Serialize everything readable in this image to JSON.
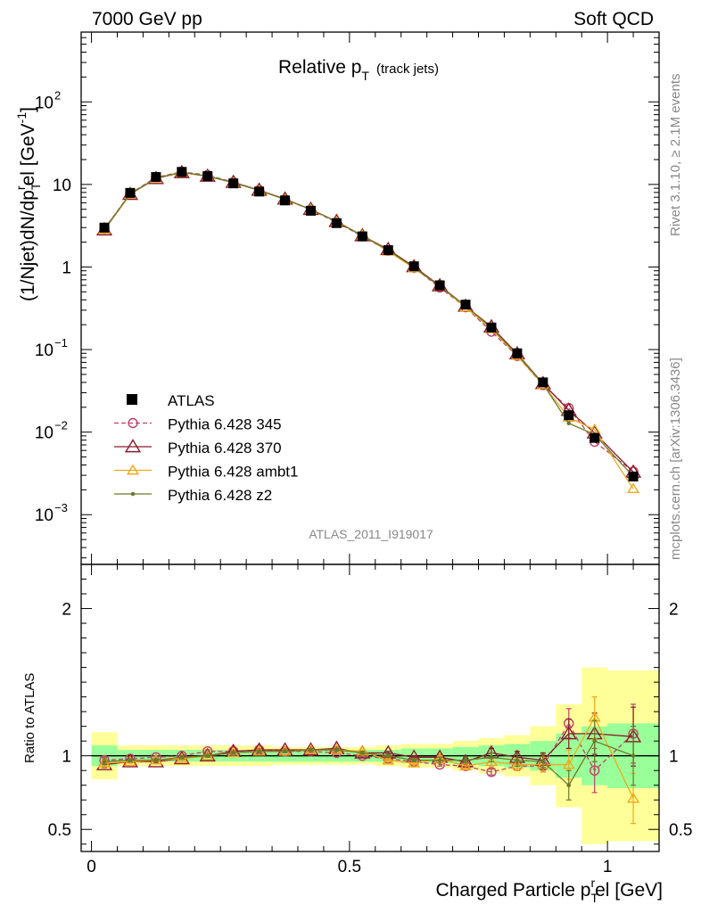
{
  "header": {
    "left": "7000 GeV pp",
    "right": "Soft QCD"
  },
  "side_labels": {
    "rivet": "Rivet 3.1.10, ≥ 2.1M events",
    "mcplots": "mcplots.cern.ch [arXiv:1306.3436]"
  },
  "chart_data": {
    "type": "line",
    "title": "Relative p_T (track jets)",
    "title_main": "Relative p",
    "title_sub": "T",
    "title_extra": "(track jets)",
    "analysis_id": "ATLAS_2011_I919017",
    "xlabel": "Charged Particle p_T^rel [GeV]",
    "ylabel": "(1/Njet)dN/dp_T^rel [GeV^-1]",
    "ratio_ylabel": "Ratio to ATLAS",
    "xlim": [
      -0.02,
      1.1
    ],
    "ylim": [
      0.00025,
      700
    ],
    "yscale": "log",
    "ratio_ylim": [
      0.35,
      2.3
    ],
    "x_ticks": [
      "0",
      "0.5",
      "1"
    ],
    "y_ticks": [
      "10^-3",
      "10^-2",
      "10^-1",
      "1",
      "10",
      "10^2"
    ],
    "ratio_ticks": [
      "0.5",
      "1",
      "2"
    ],
    "legend_placement": "lower-left",
    "x": [
      0.025,
      0.075,
      0.125,
      0.175,
      0.225,
      0.275,
      0.325,
      0.375,
      0.425,
      0.475,
      0.525,
      0.575,
      0.625,
      0.675,
      0.725,
      0.775,
      0.825,
      0.875,
      0.925,
      0.975,
      1.05
    ],
    "bin_edges": [
      0,
      0.05,
      0.1,
      0.15,
      0.2,
      0.25,
      0.3,
      0.35,
      0.4,
      0.45,
      0.5,
      0.55,
      0.6,
      0.65,
      0.7,
      0.75,
      0.8,
      0.85,
      0.9,
      0.95,
      1.0,
      1.1
    ],
    "data": {
      "name": "ATLAS",
      "values": [
        3.0,
        7.9,
        12.3,
        14.2,
        12.6,
        10.3,
        8.2,
        6.4,
        4.8,
        3.4,
        2.35,
        1.6,
        1.02,
        0.6,
        0.35,
        0.185,
        0.09,
        0.04,
        0.016,
        0.0085,
        0.0029
      ],
      "band_inner": [
        0.07,
        0.04,
        0.04,
        0.04,
        0.04,
        0.04,
        0.04,
        0.04,
        0.04,
        0.04,
        0.04,
        0.04,
        0.05,
        0.05,
        0.06,
        0.07,
        0.08,
        0.1,
        0.15,
        0.2,
        0.22
      ],
      "band_outer": [
        0.16,
        0.07,
        0.07,
        0.07,
        0.07,
        0.07,
        0.07,
        0.06,
        0.06,
        0.06,
        0.06,
        0.07,
        0.08,
        0.08,
        0.1,
        0.12,
        0.14,
        0.2,
        0.35,
        0.6,
        0.58
      ]
    },
    "series": [
      {
        "name": "Pythia 6.428 345",
        "color": "#c0406a",
        "dash": true,
        "marker": "circle",
        "ratio": [
          0.97,
          0.98,
          0.99,
          1.0,
          1.03,
          1.03,
          1.04,
          1.03,
          1.03,
          1.02,
          1.0,
          0.98,
          0.96,
          0.94,
          0.93,
          0.89,
          0.93,
          0.93,
          1.22,
          0.9,
          1.15
        ],
        "ratio_err": [
          0.02,
          0.01,
          0.01,
          0.01,
          0.01,
          0.01,
          0.01,
          0.01,
          0.01,
          0.01,
          0.01,
          0.01,
          0.01,
          0.01,
          0.01,
          0.02,
          0.03,
          0.04,
          0.1,
          0.15,
          0.2
        ]
      },
      {
        "name": "Pythia 6.428 370",
        "color": "#8b1a2b",
        "dash": false,
        "marker": "triangle",
        "ratio": [
          0.94,
          0.96,
          0.96,
          0.98,
          1.0,
          1.03,
          1.04,
          1.04,
          1.04,
          1.05,
          1.02,
          1.02,
          0.99,
          0.99,
          0.96,
          1.02,
          0.99,
          0.97,
          1.15,
          1.15,
          1.13
        ],
        "ratio_err": [
          0.02,
          0.01,
          0.01,
          0.01,
          0.01,
          0.01,
          0.01,
          0.01,
          0.01,
          0.01,
          0.01,
          0.01,
          0.01,
          0.02,
          0.02,
          0.03,
          0.04,
          0.05,
          0.1,
          0.14,
          0.2
        ]
      },
      {
        "name": "Pythia 6.428 ambt1",
        "color": "#f0a81a",
        "dash": false,
        "marker": "triangle",
        "ratio": [
          0.95,
          0.96,
          0.97,
          0.98,
          1.0,
          1.02,
          1.03,
          1.03,
          1.04,
          1.04,
          1.03,
          0.97,
          0.95,
          0.98,
          0.93,
          0.96,
          0.94,
          0.94,
          0.94,
          1.26,
          0.71
        ],
        "ratio_err": [
          0.02,
          0.01,
          0.01,
          0.01,
          0.01,
          0.01,
          0.01,
          0.01,
          0.01,
          0.01,
          0.01,
          0.01,
          0.01,
          0.02,
          0.02,
          0.03,
          0.04,
          0.05,
          0.1,
          0.14,
          0.17
        ]
      },
      {
        "name": "Pythia 6.428 z2",
        "color": "#6b7a2a",
        "dash": false,
        "marker": "dot",
        "ratio": [
          0.96,
          0.97,
          0.97,
          0.99,
          1.0,
          1.02,
          1.03,
          1.03,
          1.04,
          1.04,
          1.02,
          1.0,
          0.97,
          0.97,
          0.97,
          0.99,
          0.97,
          0.96,
          0.8,
          1.1,
          1.0
        ],
        "ratio_err": [
          0.02,
          0.01,
          0.01,
          0.01,
          0.01,
          0.01,
          0.01,
          0.01,
          0.01,
          0.01,
          0.01,
          0.01,
          0.01,
          0.02,
          0.02,
          0.03,
          0.04,
          0.05,
          0.1,
          0.14,
          0.2
        ]
      }
    ]
  }
}
